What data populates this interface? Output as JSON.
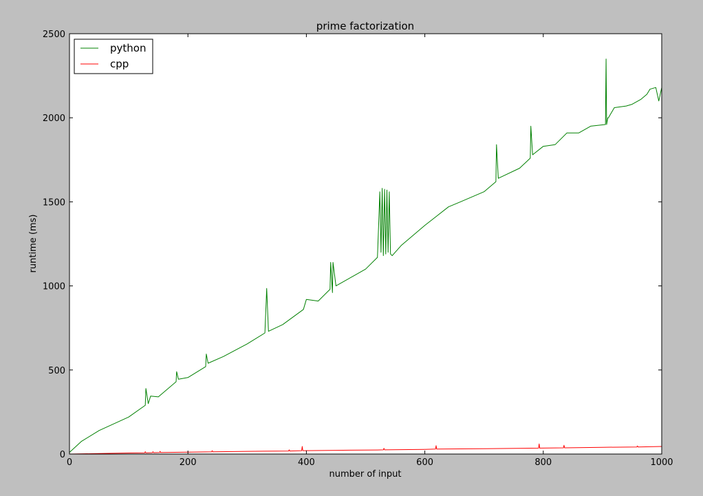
{
  "chart_data": {
    "type": "line",
    "title": "prime factorization",
    "xlabel": "number of input",
    "ylabel": "runtime (ms)",
    "xlim": [
      0,
      1000
    ],
    "ylim": [
      0,
      2500
    ],
    "xticks": [
      0,
      200,
      400,
      600,
      800,
      1000
    ],
    "yticks": [
      0,
      500,
      1000,
      1500,
      2000,
      2500
    ],
    "grid": false,
    "legend_position": "top-left",
    "series": [
      {
        "name": "python",
        "color": "#008000",
        "x": [
          0,
          20,
          50,
          100,
          128,
          129,
          133,
          137,
          150,
          180,
          181,
          184,
          200,
          230,
          231,
          234,
          260,
          300,
          330,
          333,
          336,
          360,
          395,
          400,
          420,
          440,
          441,
          444,
          445,
          450,
          480,
          500,
          520,
          524,
          526,
          528,
          530,
          532,
          534,
          536,
          538,
          540,
          542,
          545,
          560,
          600,
          640,
          660,
          700,
          720,
          721,
          724,
          760,
          778,
          779,
          782,
          800,
          820,
          840,
          860,
          880,
          905,
          906,
          907,
          909,
          910,
          920,
          940,
          950,
          965,
          975,
          980,
          990,
          995,
          1000
        ],
        "y": [
          10,
          75,
          140,
          220,
          290,
          390,
          300,
          345,
          340,
          430,
          490,
          445,
          455,
          520,
          595,
          540,
          580,
          655,
          720,
          985,
          730,
          770,
          860,
          920,
          910,
          980,
          1140,
          960,
          1140,
          1000,
          1060,
          1100,
          1170,
          1560,
          1200,
          1580,
          1180,
          1575,
          1190,
          1570,
          1200,
          1560,
          1190,
          1180,
          1240,
          1360,
          1470,
          1500,
          1560,
          1620,
          1840,
          1640,
          1700,
          1760,
          1950,
          1780,
          1830,
          1840,
          1910,
          1910,
          1950,
          1960,
          2350,
          1960,
          2000,
          2000,
          2060,
          2070,
          2080,
          2110,
          2140,
          2170,
          2180,
          2100,
          2180
        ]
      },
      {
        "name": "cpp",
        "color": "#ff0000",
        "x": [
          0,
          50,
          100,
          127,
          128,
          129,
          140,
          141,
          142,
          152,
          153,
          154,
          200,
          240,
          241,
          242,
          300,
          370,
          371,
          372,
          392,
          393,
          394,
          450,
          520,
          530,
          531,
          532,
          600,
          618,
          619,
          620,
          700,
          792,
          793,
          794,
          834,
          835,
          836,
          900,
          958,
          959,
          960,
          1000
        ],
        "y": [
          0,
          3,
          6,
          7,
          14,
          7,
          8,
          14,
          8,
          9,
          16,
          9,
          11,
          13,
          20,
          13,
          16,
          18,
          25,
          18,
          20,
          45,
          20,
          22,
          24,
          25,
          34,
          25,
          28,
          30,
          50,
          30,
          32,
          35,
          60,
          35,
          37,
          52,
          37,
          40,
          42,
          48,
          42,
          45
        ]
      }
    ]
  }
}
